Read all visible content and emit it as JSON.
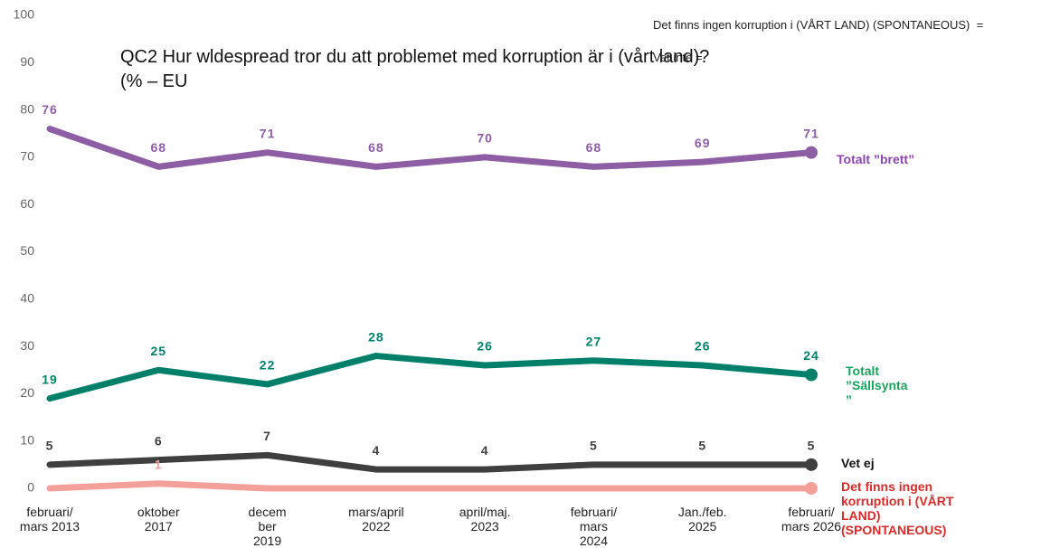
{
  "chart_data": {
    "type": "line",
    "title": "QC2 Hur wldespread tror du att problemet med korruption är i (vårt land)?\n(% – EU",
    "annotations": [
      "Det finns ingen korruption i (VÅRT LAND) (SPONTANEOUS)  =",
      "Vet inte ="
    ],
    "categories": [
      "februari/\nmars 2013",
      "oktober\n2017",
      "decem\nber\n2019",
      "mars/april\n2022",
      "april/maj.\n2023",
      "februari/\nmars\n2024",
      "Jan./feb.\n2025",
      "februari/\nmars 2026"
    ],
    "series": [
      {
        "name": "Totalt ”brett”",
        "color": "#8e5ea5",
        "label_color": "#8e44ad",
        "values": [
          76,
          68,
          71,
          68,
          70,
          68,
          69,
          71
        ]
      },
      {
        "name": "Totalt\n”Sällsynta\n”",
        "color": "#00806a",
        "label_color": "#1aa260",
        "values": [
          19,
          25,
          22,
          28,
          26,
          27,
          26,
          24
        ]
      },
      {
        "name": "Vet ej",
        "color": "#3f3f3f",
        "label_color": "#111111",
        "values": [
          5,
          6,
          7,
          4,
          4,
          5,
          5,
          5
        ]
      },
      {
        "name": "Det finns ingen\nkorruption i (VÅRT\nLAND)\n(SPONTANEOUS)",
        "color": "#f4a09a",
        "label_color": "#d62b2b",
        "values": [
          0,
          1,
          0,
          0,
          0,
          0,
          0,
          0
        ],
        "value_labels": [
          null,
          "1",
          null,
          null,
          null,
          null,
          null,
          null
        ]
      }
    ],
    "ylim": [
      0,
      100
    ],
    "yticks": [
      0,
      10,
      20,
      30,
      40,
      50,
      60,
      70,
      80,
      90,
      100
    ],
    "grid": false
  }
}
